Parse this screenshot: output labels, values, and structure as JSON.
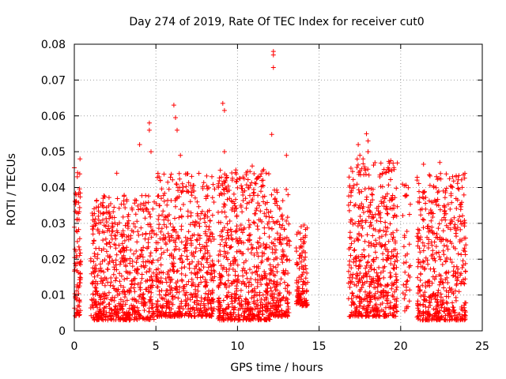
{
  "chart_data": {
    "type": "scatter",
    "title": "Day 274 of 2019, Rate Of TEC Index for receiver cut0",
    "xlabel": "GPS time / hours",
    "ylabel": "ROTI / TECUs",
    "xlim": [
      0,
      25
    ],
    "ylim": [
      0,
      0.08
    ],
    "xticks": [
      0,
      5,
      10,
      15,
      20,
      25
    ],
    "xtick_labels": [
      "0",
      "5",
      "10",
      "15",
      "20",
      "25"
    ],
    "yticks": [
      0,
      0.01,
      0.02,
      0.03,
      0.04,
      0.05,
      0.06,
      0.07,
      0.08
    ],
    "ytick_labels": [
      "0",
      "0.01",
      "0.02",
      "0.03",
      "0.04",
      "0.05",
      "0.06",
      "0.07",
      "0.08"
    ],
    "grid": true,
    "marker": "+",
    "color": "#ff0000",
    "clusters": [
      {
        "x_range": [
          0.0,
          0.4
        ],
        "y_range": [
          0.004,
          0.045
        ],
        "count": 90
      },
      {
        "x_range": [
          1.0,
          4.9
        ],
        "y_range": [
          0.003,
          0.038
        ],
        "count": 650
      },
      {
        "x_range": [
          5.0,
          8.6
        ],
        "y_range": [
          0.004,
          0.044
        ],
        "count": 600
      },
      {
        "x_range": [
          8.8,
          12.0
        ],
        "y_range": [
          0.003,
          0.045
        ],
        "count": 600
      },
      {
        "x_range": [
          12.0,
          13.2
        ],
        "y_range": [
          0.004,
          0.04
        ],
        "count": 200
      },
      {
        "x_range": [
          13.6,
          14.3
        ],
        "y_range": [
          0.007,
          0.03
        ],
        "count": 120
      },
      {
        "x_range": [
          16.8,
          19.8
        ],
        "y_range": [
          0.004,
          0.048
        ],
        "count": 550
      },
      {
        "x_range": [
          20.1,
          20.6
        ],
        "y_range": [
          0.005,
          0.042
        ],
        "count": 40
      },
      {
        "x_range": [
          21.0,
          24.0
        ],
        "y_range": [
          0.003,
          0.044
        ],
        "count": 500
      }
    ],
    "outliers": [
      {
        "x": 0.0,
        "y": 0.0455
      },
      {
        "x": 0.35,
        "y": 0.048
      },
      {
        "x": 2.6,
        "y": 0.044
      },
      {
        "x": 4.0,
        "y": 0.052
      },
      {
        "x": 4.6,
        "y": 0.058
      },
      {
        "x": 4.6,
        "y": 0.056
      },
      {
        "x": 4.7,
        "y": 0.05
      },
      {
        "x": 6.1,
        "y": 0.063
      },
      {
        "x": 6.2,
        "y": 0.0595
      },
      {
        "x": 6.3,
        "y": 0.056
      },
      {
        "x": 6.5,
        "y": 0.049
      },
      {
        "x": 9.1,
        "y": 0.0635
      },
      {
        "x": 9.2,
        "y": 0.0615
      },
      {
        "x": 9.2,
        "y": 0.05
      },
      {
        "x": 10.9,
        "y": 0.046
      },
      {
        "x": 11.6,
        "y": 0.045
      },
      {
        "x": 12.2,
        "y": 0.078
      },
      {
        "x": 12.2,
        "y": 0.077
      },
      {
        "x": 12.2,
        "y": 0.0735
      },
      {
        "x": 12.1,
        "y": 0.0548
      },
      {
        "x": 13.0,
        "y": 0.049
      },
      {
        "x": 17.4,
        "y": 0.052
      },
      {
        "x": 17.5,
        "y": 0.049
      },
      {
        "x": 17.9,
        "y": 0.055
      },
      {
        "x": 18.0,
        "y": 0.053
      },
      {
        "x": 18.0,
        "y": 0.05
      },
      {
        "x": 19.6,
        "y": 0.045
      },
      {
        "x": 21.4,
        "y": 0.0465
      },
      {
        "x": 22.4,
        "y": 0.047
      },
      {
        "x": 23.4,
        "y": 0.043
      }
    ]
  }
}
